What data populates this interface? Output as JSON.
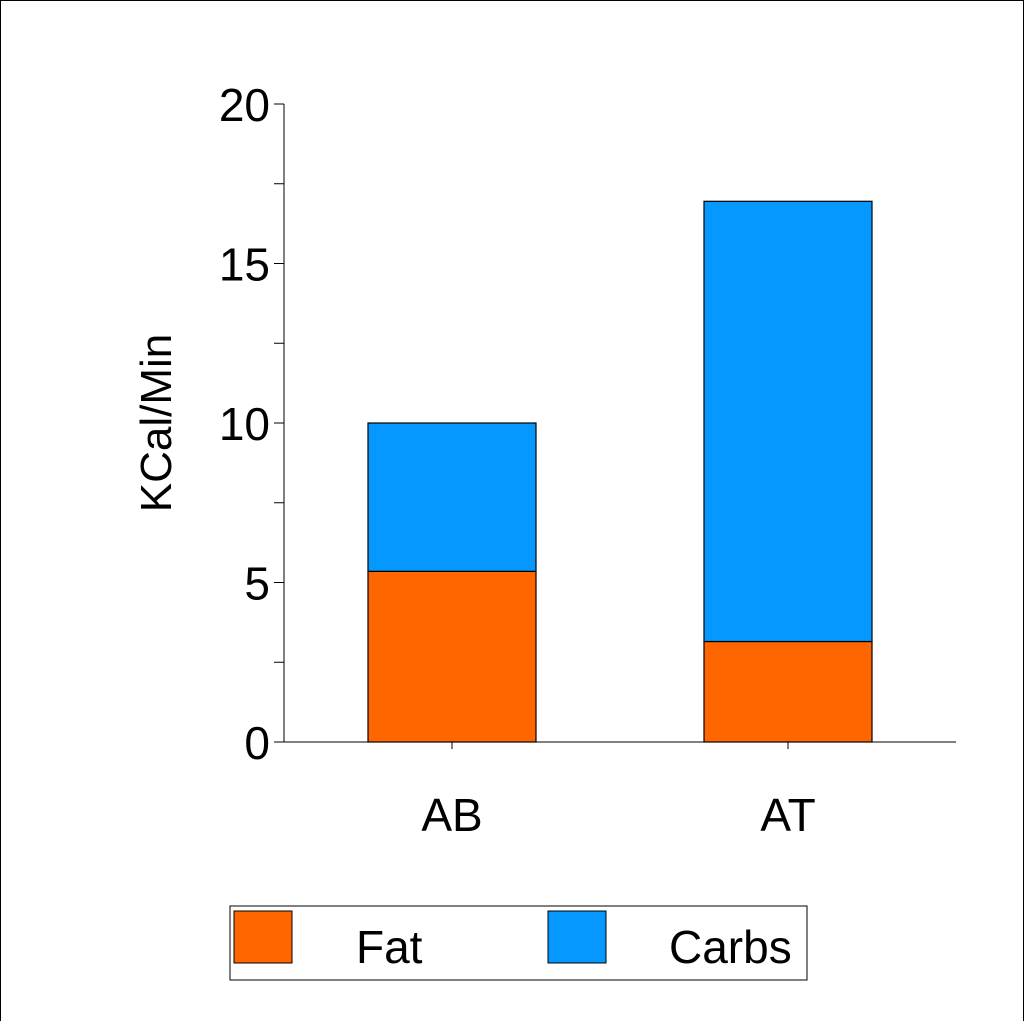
{
  "chart_data": {
    "type": "bar",
    "stacked": true,
    "categories": [
      "AB",
      "AT"
    ],
    "series": [
      {
        "name": "Fat",
        "values": [
          5.35,
          3.15
        ],
        "color": "#ff6600"
      },
      {
        "name": "Carbs",
        "values": [
          4.65,
          13.8
        ],
        "color": "#0599ff"
      }
    ],
    "ylabel": "KCal/Min",
    "xlabel": "",
    "ylim": [
      0,
      20
    ],
    "yticks": [
      "0",
      "5",
      "10",
      "15",
      "20"
    ],
    "grid": false,
    "legend_position": "bottom"
  }
}
